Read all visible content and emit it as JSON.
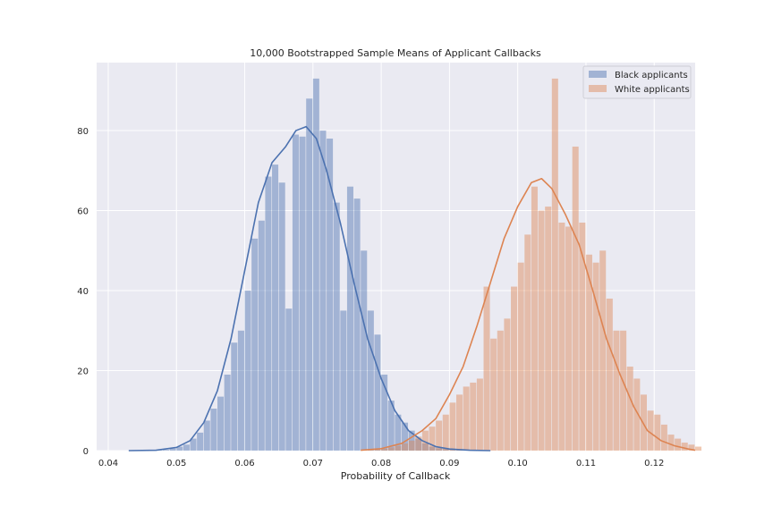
{
  "chart_data": {
    "type": "bar",
    "title": "10,000 Bootstrapped Sample Means of Applicant Callbacks",
    "xlabel": "Probability of Callback",
    "ylabel": "",
    "xlim": [
      0.0383,
      0.126
    ],
    "ylim": [
      0,
      97
    ],
    "x_ticks": [
      "0.04",
      "0.05",
      "0.06",
      "0.07",
      "0.08",
      "0.09",
      "0.10",
      "0.11",
      "0.12"
    ],
    "y_ticks": [
      "0",
      "20",
      "40",
      "60",
      "80"
    ],
    "grid": true,
    "legend_position": "top-right",
    "colors": {
      "background": "#eaeaf2",
      "grid": "#ffffff",
      "black_applicants": "#4c72b0",
      "white_applicants": "#dd8452"
    },
    "series": [
      {
        "name": "Black applicants",
        "bin_width": 0.001,
        "bins": [
          [
            0.043,
            0
          ],
          [
            0.044,
            0
          ],
          [
            0.045,
            0
          ],
          [
            0.046,
            0
          ],
          [
            0.047,
            0.1
          ],
          [
            0.048,
            0.2
          ],
          [
            0.049,
            0.5
          ],
          [
            0.05,
            1.0
          ],
          [
            0.051,
            1.5
          ],
          [
            0.052,
            3.0
          ],
          [
            0.053,
            4.5
          ],
          [
            0.054,
            7.5
          ],
          [
            0.055,
            10.5
          ],
          [
            0.056,
            13.5
          ],
          [
            0.057,
            19.0
          ],
          [
            0.058,
            27.0
          ],
          [
            0.059,
            30.0
          ],
          [
            0.06,
            40.0
          ],
          [
            0.061,
            53.0
          ],
          [
            0.062,
            57.5
          ],
          [
            0.063,
            68.5
          ],
          [
            0.064,
            71.5
          ],
          [
            0.065,
            67.0
          ],
          [
            0.066,
            35.5
          ],
          [
            0.067,
            79.0
          ],
          [
            0.068,
            78.5
          ],
          [
            0.069,
            88.0
          ],
          [
            0.07,
            93.0
          ],
          [
            0.071,
            80.0
          ],
          [
            0.072,
            78.0
          ],
          [
            0.073,
            62.0
          ],
          [
            0.074,
            35.0
          ],
          [
            0.075,
            66.0
          ],
          [
            0.076,
            63.0
          ],
          [
            0.077,
            50.0
          ],
          [
            0.078,
            35.0
          ],
          [
            0.079,
            29.0
          ],
          [
            0.08,
            19.0
          ],
          [
            0.081,
            12.5
          ],
          [
            0.082,
            9.0
          ],
          [
            0.083,
            7.0
          ],
          [
            0.084,
            5.0
          ],
          [
            0.085,
            3.0
          ],
          [
            0.086,
            1.8
          ],
          [
            0.087,
            1.0
          ],
          [
            0.088,
            0.6
          ],
          [
            0.089,
            0.4
          ],
          [
            0.09,
            0.3
          ],
          [
            0.091,
            0.2
          ],
          [
            0.092,
            0.1
          ],
          [
            0.093,
            0.1
          ],
          [
            0.094,
            0.1
          ],
          [
            0.095,
            0.1
          ],
          [
            0.096,
            0
          ]
        ],
        "kde": [
          [
            0.043,
            0
          ],
          [
            0.047,
            0.1
          ],
          [
            0.05,
            0.8
          ],
          [
            0.052,
            2.5
          ],
          [
            0.054,
            7.0
          ],
          [
            0.056,
            15.0
          ],
          [
            0.058,
            28.0
          ],
          [
            0.06,
            45.0
          ],
          [
            0.062,
            62.0
          ],
          [
            0.064,
            72.0
          ],
          [
            0.066,
            76.0
          ],
          [
            0.0675,
            80.0
          ],
          [
            0.069,
            81.0
          ],
          [
            0.0705,
            78.0
          ],
          [
            0.072,
            70.0
          ],
          [
            0.074,
            57.0
          ],
          [
            0.076,
            42.0
          ],
          [
            0.078,
            28.0
          ],
          [
            0.08,
            18.0
          ],
          [
            0.082,
            10.0
          ],
          [
            0.084,
            5.0
          ],
          [
            0.086,
            2.5
          ],
          [
            0.088,
            1.0
          ],
          [
            0.09,
            0.4
          ],
          [
            0.093,
            0.1
          ],
          [
            0.096,
            0
          ]
        ]
      },
      {
        "name": "White applicants",
        "bin_width": 0.001,
        "bins": [
          [
            0.077,
            0.1
          ],
          [
            0.078,
            0.2
          ],
          [
            0.079,
            0.3
          ],
          [
            0.08,
            0.5
          ],
          [
            0.081,
            0.8
          ],
          [
            0.082,
            1.2
          ],
          [
            0.083,
            1.8
          ],
          [
            0.084,
            2.5
          ],
          [
            0.085,
            3.5
          ],
          [
            0.086,
            5.0
          ],
          [
            0.087,
            6.0
          ],
          [
            0.088,
            7.5
          ],
          [
            0.089,
            9.0
          ],
          [
            0.09,
            12.0
          ],
          [
            0.091,
            14.0
          ],
          [
            0.092,
            16.0
          ],
          [
            0.093,
            17.0
          ],
          [
            0.094,
            18.0
          ],
          [
            0.095,
            41.0
          ],
          [
            0.096,
            28.0
          ],
          [
            0.097,
            30.0
          ],
          [
            0.098,
            33.0
          ],
          [
            0.099,
            41.0
          ],
          [
            0.1,
            47.0
          ],
          [
            0.101,
            54.0
          ],
          [
            0.102,
            66.0
          ],
          [
            0.103,
            60.0
          ],
          [
            0.104,
            61.0
          ],
          [
            0.105,
            93.0
          ],
          [
            0.106,
            57.0
          ],
          [
            0.107,
            56.0
          ],
          [
            0.108,
            76.0
          ],
          [
            0.109,
            57.0
          ],
          [
            0.11,
            49.0
          ],
          [
            0.111,
            47.0
          ],
          [
            0.112,
            50.0
          ],
          [
            0.113,
            38.0
          ],
          [
            0.114,
            30.0
          ],
          [
            0.115,
            30.0
          ],
          [
            0.116,
            21.0
          ],
          [
            0.117,
            18.0
          ],
          [
            0.118,
            14.0
          ],
          [
            0.119,
            10.0
          ],
          [
            0.12,
            9.0
          ],
          [
            0.121,
            6.5
          ],
          [
            0.122,
            4.0
          ],
          [
            0.123,
            3.0
          ],
          [
            0.124,
            2.0
          ],
          [
            0.125,
            1.5
          ],
          [
            0.126,
            1.0
          ]
        ],
        "kde": [
          [
            0.077,
            0.1
          ],
          [
            0.08,
            0.5
          ],
          [
            0.083,
            1.8
          ],
          [
            0.086,
            5.0
          ],
          [
            0.088,
            8.0
          ],
          [
            0.09,
            14.0
          ],
          [
            0.092,
            21.0
          ],
          [
            0.094,
            31.0
          ],
          [
            0.096,
            42.0
          ],
          [
            0.098,
            53.0
          ],
          [
            0.1,
            61.0
          ],
          [
            0.102,
            67.0
          ],
          [
            0.1035,
            68.0
          ],
          [
            0.105,
            65.5
          ],
          [
            0.107,
            59.0
          ],
          [
            0.109,
            51.5
          ],
          [
            0.111,
            40.0
          ],
          [
            0.113,
            28.0
          ],
          [
            0.115,
            19.0
          ],
          [
            0.117,
            11.0
          ],
          [
            0.119,
            5.0
          ],
          [
            0.121,
            2.5
          ],
          [
            0.123,
            1.2
          ],
          [
            0.125,
            0.4
          ],
          [
            0.126,
            0.1
          ]
        ]
      }
    ]
  }
}
